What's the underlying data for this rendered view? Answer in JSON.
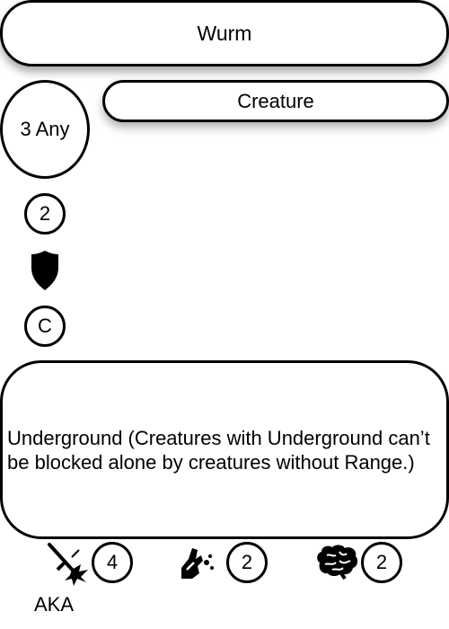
{
  "card": {
    "name": "Wurm",
    "type": "Creature",
    "cost": "3 Any",
    "stat_top": "2",
    "stat_mid_icon": "shield-icon",
    "stat_bottom": "C",
    "rules_text": "Underground (Creatures with Underground can’t be blocked alone by creatures without Range.)",
    "footer": {
      "attack": {
        "icon": "sword-strike-icon",
        "value": "4"
      },
      "magic": {
        "icon": "casting-hand-icon",
        "value": "2"
      },
      "mind": {
        "icon": "brain-icon",
        "value": "2"
      }
    },
    "aka": "AKA"
  }
}
